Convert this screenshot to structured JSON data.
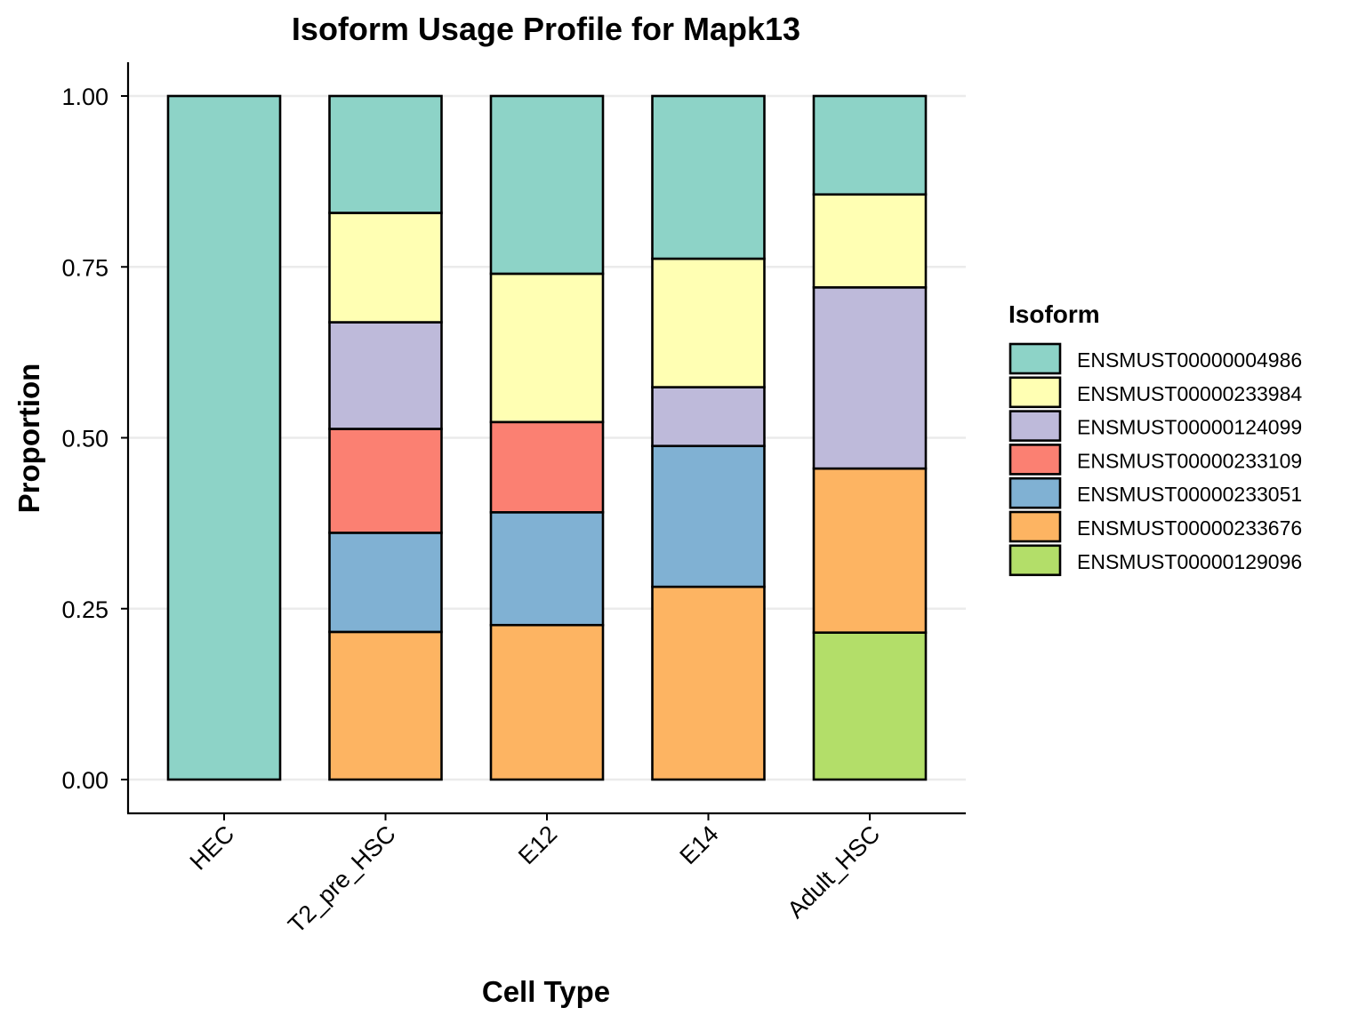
{
  "chart_data": {
    "type": "bar",
    "stacked": true,
    "title": "Isoform Usage Profile for Mapk13",
    "xlabel": "Cell Type",
    "ylabel": "Proportion",
    "ylim": [
      0,
      1
    ],
    "yticks": [
      "0.00",
      "0.25",
      "0.50",
      "0.75",
      "1.00"
    ],
    "ytick_values": [
      0,
      0.25,
      0.5,
      0.75,
      1.0
    ],
    "grid": "horizontal",
    "legend_title": "Isoform",
    "legend_position": "right",
    "categories": [
      "HEC",
      "T2_pre_HSC",
      "E12",
      "E14",
      "Adult_HSC"
    ],
    "series": [
      {
        "name": "ENSMUST00000004986",
        "color": "#8DD3C7",
        "values": [
          1.0,
          0.171,
          0.26,
          0.238,
          0.144
        ]
      },
      {
        "name": "ENSMUST00000233984",
        "color": "#FFFFB3",
        "values": [
          0,
          0.16,
          0.217,
          0.188,
          0.136
        ]
      },
      {
        "name": "ENSMUST00000124099",
        "color": "#BEBADA",
        "values": [
          0,
          0.156,
          0,
          0.086,
          0.265
        ]
      },
      {
        "name": "ENSMUST00000233109",
        "color": "#FB8072",
        "values": [
          0,
          0.152,
          0.132,
          0,
          0
        ]
      },
      {
        "name": "ENSMUST00000233051",
        "color": "#80B1D3",
        "values": [
          0,
          0.145,
          0.165,
          0.206,
          0
        ]
      },
      {
        "name": "ENSMUST00000233676",
        "color": "#FDB462",
        "values": [
          0,
          0.216,
          0.226,
          0.282,
          0.24
        ]
      },
      {
        "name": "ENSMUST00000129096",
        "color": "#B3DE69",
        "values": [
          0,
          0,
          0,
          0,
          0.215
        ]
      }
    ],
    "stack_order_bottom_to_top": [
      "ENSMUST00000129096",
      "ENSMUST00000233676",
      "ENSMUST00000233051",
      "ENSMUST00000233109",
      "ENSMUST00000124099",
      "ENSMUST00000233984",
      "ENSMUST00000004986"
    ]
  }
}
